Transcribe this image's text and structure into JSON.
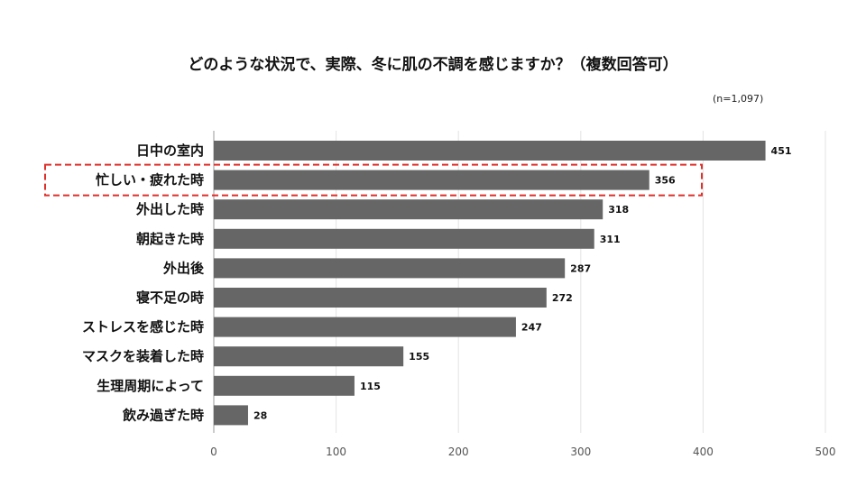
{
  "chart_data": {
    "type": "bar",
    "orientation": "horizontal",
    "title": "どのような状況で、実際、冬に肌の不調を感じますか？（複数回答可）",
    "sample_note": "(n=1,097)",
    "categories": [
      "日中の室内",
      "忙しい・疲れた時",
      "外出した時",
      "朝起きた時",
      "外出後",
      "寝不足の時",
      "ストレスを感じた時",
      "マスクを装着した時",
      "生理周期によって",
      "飲み過ぎた時"
    ],
    "values": [
      451,
      356,
      318,
      311,
      287,
      272,
      247,
      155,
      115,
      28
    ],
    "xlim": [
      0,
      500
    ],
    "xticks": [
      0,
      100,
      200,
      300,
      400,
      500
    ],
    "xlabel": "",
    "ylabel": "",
    "grid": true,
    "highlight_index": 1,
    "colors": {
      "bar": "#666666",
      "grid": "#e3e3e3",
      "axis": "#999999",
      "highlight": "#e0302b"
    }
  }
}
